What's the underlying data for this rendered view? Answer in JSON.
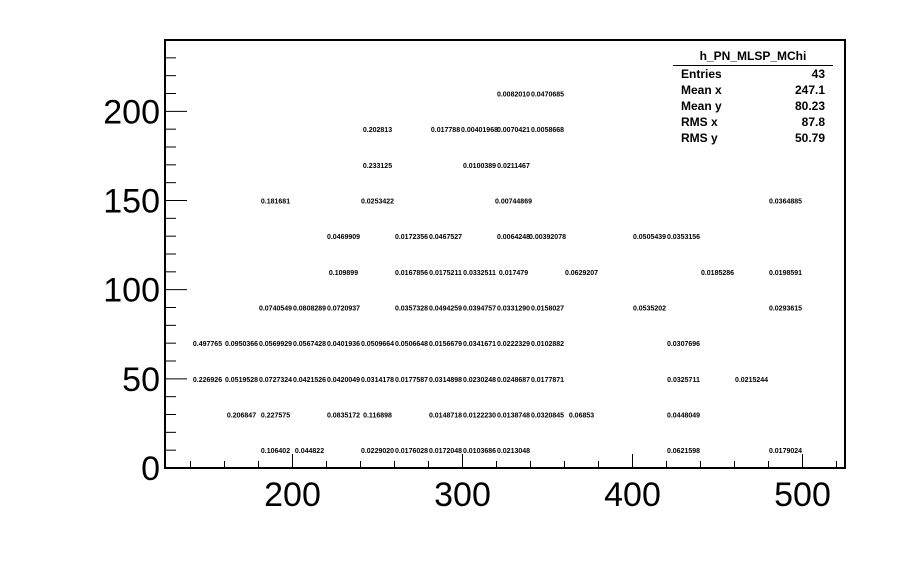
{
  "chart_data": {
    "type": "table",
    "xlim": [
      125,
      525
    ],
    "ylim": [
      0,
      240
    ],
    "x_ticks": [
      "200",
      "300",
      "400",
      "500"
    ],
    "y_ticks": [
      "0",
      "50",
      "100",
      "150",
      "200"
    ],
    "cells": [
      {
        "x": 330,
        "y": 210,
        "label": "0.0082010"
      },
      {
        "x": 350,
        "y": 210,
        "label": "0.0470685"
      },
      {
        "x": 250,
        "y": 190,
        "label": "0.202813"
      },
      {
        "x": 290,
        "y": 190,
        "label": "0.017788"
      },
      {
        "x": 310,
        "y": 190,
        "label": "0.00401968"
      },
      {
        "x": 330,
        "y": 190,
        "label": "0.0070421"
      },
      {
        "x": 350,
        "y": 190,
        "label": "0.0058668"
      },
      {
        "x": 250,
        "y": 170,
        "label": "0.233125"
      },
      {
        "x": 310,
        "y": 170,
        "label": "0.0100389"
      },
      {
        "x": 330,
        "y": 170,
        "label": "0.0211467"
      },
      {
        "x": 190,
        "y": 150,
        "label": "0.181681"
      },
      {
        "x": 250,
        "y": 150,
        "label": "0.0253422"
      },
      {
        "x": 330,
        "y": 150,
        "label": "0.00744869"
      },
      {
        "x": 490,
        "y": 150,
        "label": "0.0364885"
      },
      {
        "x": 230,
        "y": 130,
        "label": "0.0469909"
      },
      {
        "x": 270,
        "y": 130,
        "label": "0.0172356"
      },
      {
        "x": 290,
        "y": 130,
        "label": "0.0467527"
      },
      {
        "x": 330,
        "y": 130,
        "label": "0.0064248"
      },
      {
        "x": 350,
        "y": 130,
        "label": "0.00392078"
      },
      {
        "x": 410,
        "y": 130,
        "label": "0.0505439"
      },
      {
        "x": 430,
        "y": 130,
        "label": "0.0353156"
      },
      {
        "x": 230,
        "y": 110,
        "label": "0.109899"
      },
      {
        "x": 270,
        "y": 110,
        "label": "0.0167856"
      },
      {
        "x": 290,
        "y": 110,
        "label": "0.0175211"
      },
      {
        "x": 310,
        "y": 110,
        "label": "0.0332511"
      },
      {
        "x": 330,
        "y": 110,
        "label": "0.017479"
      },
      {
        "x": 370,
        "y": 110,
        "label": "0.0629207"
      },
      {
        "x": 450,
        "y": 110,
        "label": "0.0185286"
      },
      {
        "x": 490,
        "y": 110,
        "label": "0.0198591"
      },
      {
        "x": 190,
        "y": 90,
        "label": "0.0740549"
      },
      {
        "x": 210,
        "y": 90,
        "label": "0.0808289"
      },
      {
        "x": 230,
        "y": 90,
        "label": "0.0720937"
      },
      {
        "x": 270,
        "y": 90,
        "label": "0.0357328"
      },
      {
        "x": 290,
        "y": 90,
        "label": "0.0494259"
      },
      {
        "x": 310,
        "y": 90,
        "label": "0.0394757"
      },
      {
        "x": 330,
        "y": 90,
        "label": "0.0331290"
      },
      {
        "x": 350,
        "y": 90,
        "label": "0.0158027"
      },
      {
        "x": 410,
        "y": 90,
        "label": "0.0535202"
      },
      {
        "x": 490,
        "y": 90,
        "label": "0.0293615"
      },
      {
        "x": 150,
        "y": 70,
        "label": "0.497765"
      },
      {
        "x": 170,
        "y": 70,
        "label": "0.0950366"
      },
      {
        "x": 190,
        "y": 70,
        "label": "0.0569929"
      },
      {
        "x": 210,
        "y": 70,
        "label": "0.0567428"
      },
      {
        "x": 230,
        "y": 70,
        "label": "0.0401936"
      },
      {
        "x": 250,
        "y": 70,
        "label": "0.0509664"
      },
      {
        "x": 270,
        "y": 70,
        "label": "0.0506648"
      },
      {
        "x": 290,
        "y": 70,
        "label": "0.0156679"
      },
      {
        "x": 310,
        "y": 70,
        "label": "0.0341671"
      },
      {
        "x": 330,
        "y": 70,
        "label": "0.0222329"
      },
      {
        "x": 350,
        "y": 70,
        "label": "0.0102882"
      },
      {
        "x": 430,
        "y": 70,
        "label": "0.0307696"
      },
      {
        "x": 150,
        "y": 50,
        "label": "0.226926"
      },
      {
        "x": 170,
        "y": 50,
        "label": "0.0519528"
      },
      {
        "x": 190,
        "y": 50,
        "label": "0.0727324"
      },
      {
        "x": 210,
        "y": 50,
        "label": "0.0421526"
      },
      {
        "x": 230,
        "y": 50,
        "label": "0.0420049"
      },
      {
        "x": 250,
        "y": 50,
        "label": "0.0314178"
      },
      {
        "x": 270,
        "y": 50,
        "label": "0.0177587"
      },
      {
        "x": 290,
        "y": 50,
        "label": "0.0314898"
      },
      {
        "x": 310,
        "y": 50,
        "label": "0.0230248"
      },
      {
        "x": 330,
        "y": 50,
        "label": "0.0248687"
      },
      {
        "x": 350,
        "y": 50,
        "label": "0.0177871"
      },
      {
        "x": 430,
        "y": 50,
        "label": "0.0325711"
      },
      {
        "x": 470,
        "y": 50,
        "label": "0.0215244"
      },
      {
        "x": 170,
        "y": 30,
        "label": "0.206847"
      },
      {
        "x": 190,
        "y": 30,
        "label": "0.227575"
      },
      {
        "x": 230,
        "y": 30,
        "label": "0.0835172"
      },
      {
        "x": 250,
        "y": 30,
        "label": "0.116898"
      },
      {
        "x": 290,
        "y": 30,
        "label": "0.0148718"
      },
      {
        "x": 310,
        "y": 30,
        "label": "0.0122230"
      },
      {
        "x": 330,
        "y": 30,
        "label": "0.0138748"
      },
      {
        "x": 350,
        "y": 30,
        "label": "0.0320845"
      },
      {
        "x": 370,
        "y": 30,
        "label": "0.06853"
      },
      {
        "x": 430,
        "y": 30,
        "label": "0.0448049"
      },
      {
        "x": 190,
        "y": 10,
        "label": "0.106402"
      },
      {
        "x": 210,
        "y": 10,
        "label": "0.044822"
      },
      {
        "x": 250,
        "y": 10,
        "label": "0.0229020"
      },
      {
        "x": 270,
        "y": 10,
        "label": "0.0176028"
      },
      {
        "x": 290,
        "y": 10,
        "label": "0.0172048"
      },
      {
        "x": 310,
        "y": 10,
        "label": "0.0103686"
      },
      {
        "x": 330,
        "y": 10,
        "label": "0.0213048"
      },
      {
        "x": 430,
        "y": 10,
        "label": "0.0621598"
      },
      {
        "x": 490,
        "y": 10,
        "label": "0.0179024"
      }
    ]
  },
  "stats": {
    "title": "h_PN_MLSP_MChi",
    "rows": [
      {
        "label": "Entries",
        "value": "43"
      },
      {
        "label": "Mean x",
        "value": "247.1"
      },
      {
        "label": "Mean y",
        "value": "80.23"
      },
      {
        "label": "RMS x",
        "value": "87.8"
      },
      {
        "label": "RMS y",
        "value": "50.79"
      }
    ]
  }
}
